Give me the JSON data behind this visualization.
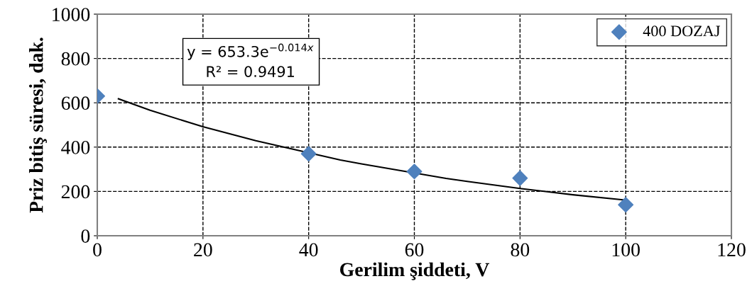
{
  "chart_data": {
    "type": "scatter",
    "xlabel": "Gerilim şiddeti, V",
    "ylabel": "Priz bitiş süresi, dak.",
    "xlim": [
      0,
      120
    ],
    "xticks": [
      0,
      20,
      40,
      60,
      80,
      100,
      120
    ],
    "ylim": [
      0,
      1000
    ],
    "yticks": [
      0,
      200,
      400,
      600,
      800,
      1000
    ],
    "grid": true,
    "legend": "top right",
    "marker": "diamond",
    "series": [
      {
        "name": "400 DOZAJ",
        "color": "#4f81bd",
        "x": [
          0,
          40,
          60,
          80,
          100
        ],
        "values": [
          630,
          370,
          290,
          260,
          140
        ]
      },
      {
        "type": "line",
        "color": "#000000",
        "line_style": "solid",
        "marker": "none",
        "x": [
          4,
          10,
          20,
          30,
          46,
          50,
          66,
          70,
          80,
          90,
          100
        ],
        "values": [
          618,
          566,
          492,
          429,
          342,
          324,
          259,
          245,
          213,
          185,
          161
        ]
      }
    ],
    "annotations": [
      "y = 653.3e$^{−0.014x}$",
      "R² = 0.9491"
    ]
  }
}
